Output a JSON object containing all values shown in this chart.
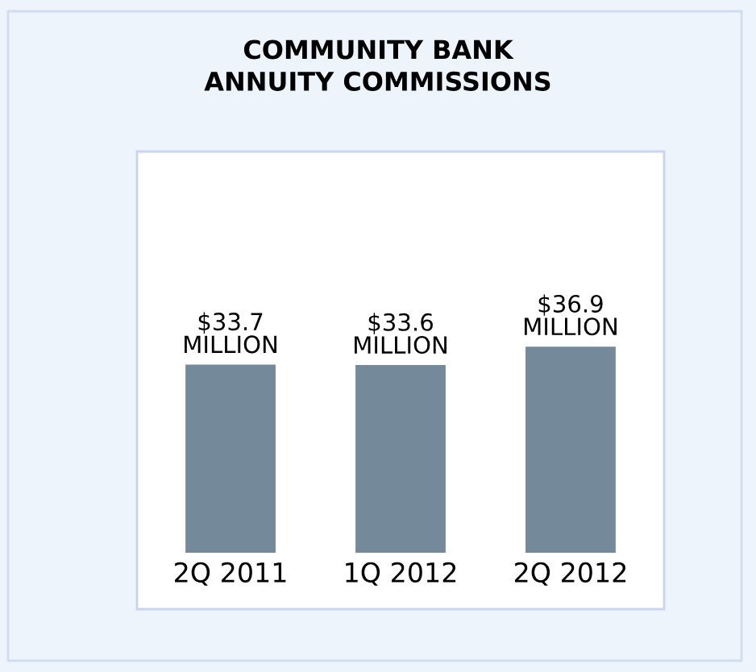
{
  "chart_data": {
    "type": "bar",
    "title": "COMMUNITY BANK\nANNUITY COMMISSIONS",
    "categories": [
      "2Q 2011",
      "1Q 2012",
      "2Q 2012"
    ],
    "values": [
      33.7,
      33.6,
      36.9
    ],
    "value_labels": [
      "$33.7\nMILLION",
      "$33.6\nMILLION",
      "$36.9\nMILLION"
    ],
    "color": "#748a9b",
    "grid": false,
    "legend": false
  }
}
